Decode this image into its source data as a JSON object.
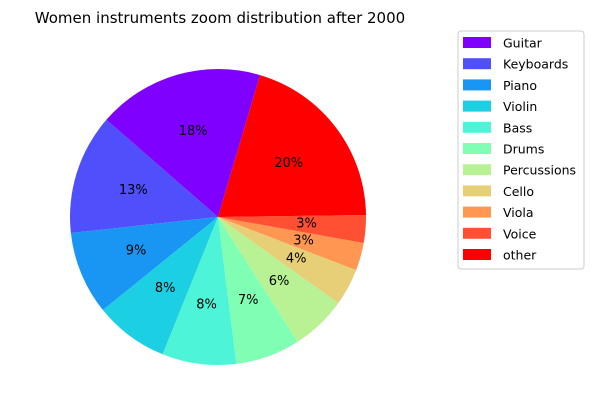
{
  "chart_data": {
    "type": "pie",
    "title": "Women instruments zoom distribution after 2000",
    "slices": [
      {
        "label": "Guitar",
        "value": 18,
        "pct_label": "18%",
        "color": "#8000ff"
      },
      {
        "label": "Keyboards",
        "value": 13,
        "pct_label": "13%",
        "color": "#4f4ffb"
      },
      {
        "label": "Piano",
        "value": 9,
        "pct_label": "9%",
        "color": "#1996f3"
      },
      {
        "label": "Violin",
        "value": 8,
        "pct_label": "8%",
        "color": "#1ccfe3"
      },
      {
        "label": "Bass",
        "value": 8,
        "pct_label": "8%",
        "color": "#4ef4d8"
      },
      {
        "label": "Drums",
        "value": 7,
        "pct_label": "7%",
        "color": "#80ffb4"
      },
      {
        "label": "Percussions",
        "value": 6,
        "pct_label": "6%",
        "color": "#b8f294"
      },
      {
        "label": "Cello",
        "value": 4,
        "pct_label": "4%",
        "color": "#e6cf77"
      },
      {
        "label": "Viola",
        "value": 3,
        "pct_label": "3%",
        "color": "#ff9651"
      },
      {
        "label": "Voice",
        "value": 3,
        "pct_label": "3%",
        "color": "#ff5033"
      },
      {
        "label": "other",
        "value": 20,
        "pct_label": "20%",
        "color": "#ff0000"
      }
    ],
    "start_angle_deg": 73.5,
    "direction": "counterclockwise",
    "legend_position": "right"
  }
}
